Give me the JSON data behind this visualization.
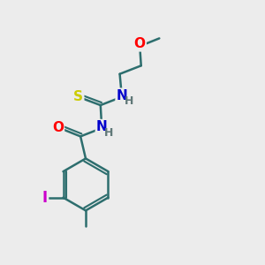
{
  "bg_color": "#ececec",
  "bond_color": "#2d6e6e",
  "bond_width": 1.8,
  "atom_colors": {
    "O": "#ff0000",
    "N": "#0000cc",
    "S": "#cccc00",
    "I": "#cc00cc",
    "H_label": "#607878",
    "C_implicit": "#2d6e6e"
  },
  "font_size_atoms": 11,
  "font_size_h": 9
}
